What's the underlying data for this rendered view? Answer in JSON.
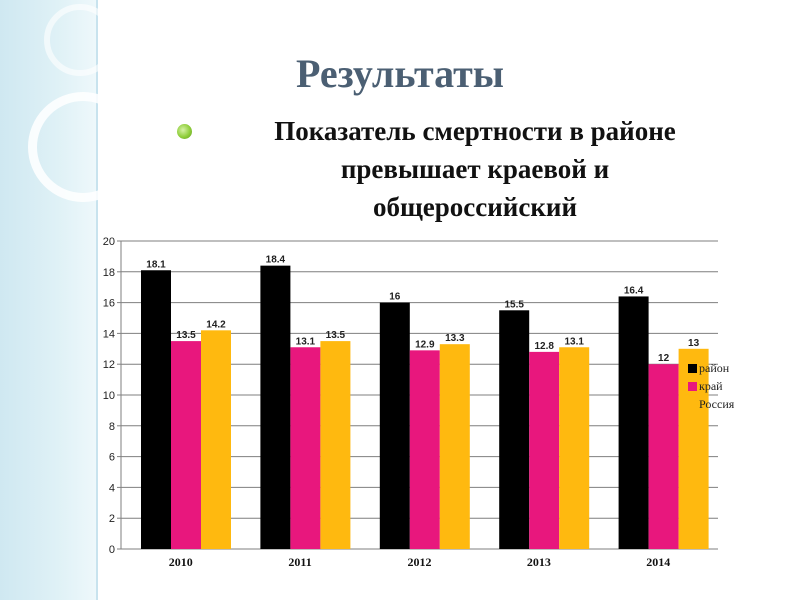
{
  "slide": {
    "title": "Результаты",
    "bullet_lines": [
      "Показатель смертности в районе",
      "превышает краевой и",
      "общероссийский"
    ]
  },
  "chart_data": {
    "type": "bar",
    "categories": [
      "2010",
      "2011",
      "2012",
      "2013",
      "2014"
    ],
    "series": [
      {
        "name": "район",
        "color": "#000000",
        "values": [
          18.1,
          18.4,
          16,
          15.5,
          16.4
        ]
      },
      {
        "name": "край",
        "color": "#e8177d",
        "values": [
          13.5,
          13.1,
          12.9,
          12.8,
          12
        ]
      },
      {
        "name": "Россия",
        "color": "#ffb90f",
        "values": [
          14.2,
          13.5,
          13.3,
          13.1,
          13
        ]
      }
    ],
    "ylim": [
      0,
      20
    ],
    "yticks": [
      0,
      2,
      4,
      6,
      8,
      10,
      12,
      14,
      16,
      18,
      20
    ],
    "grid": true,
    "legend_position": "right"
  }
}
